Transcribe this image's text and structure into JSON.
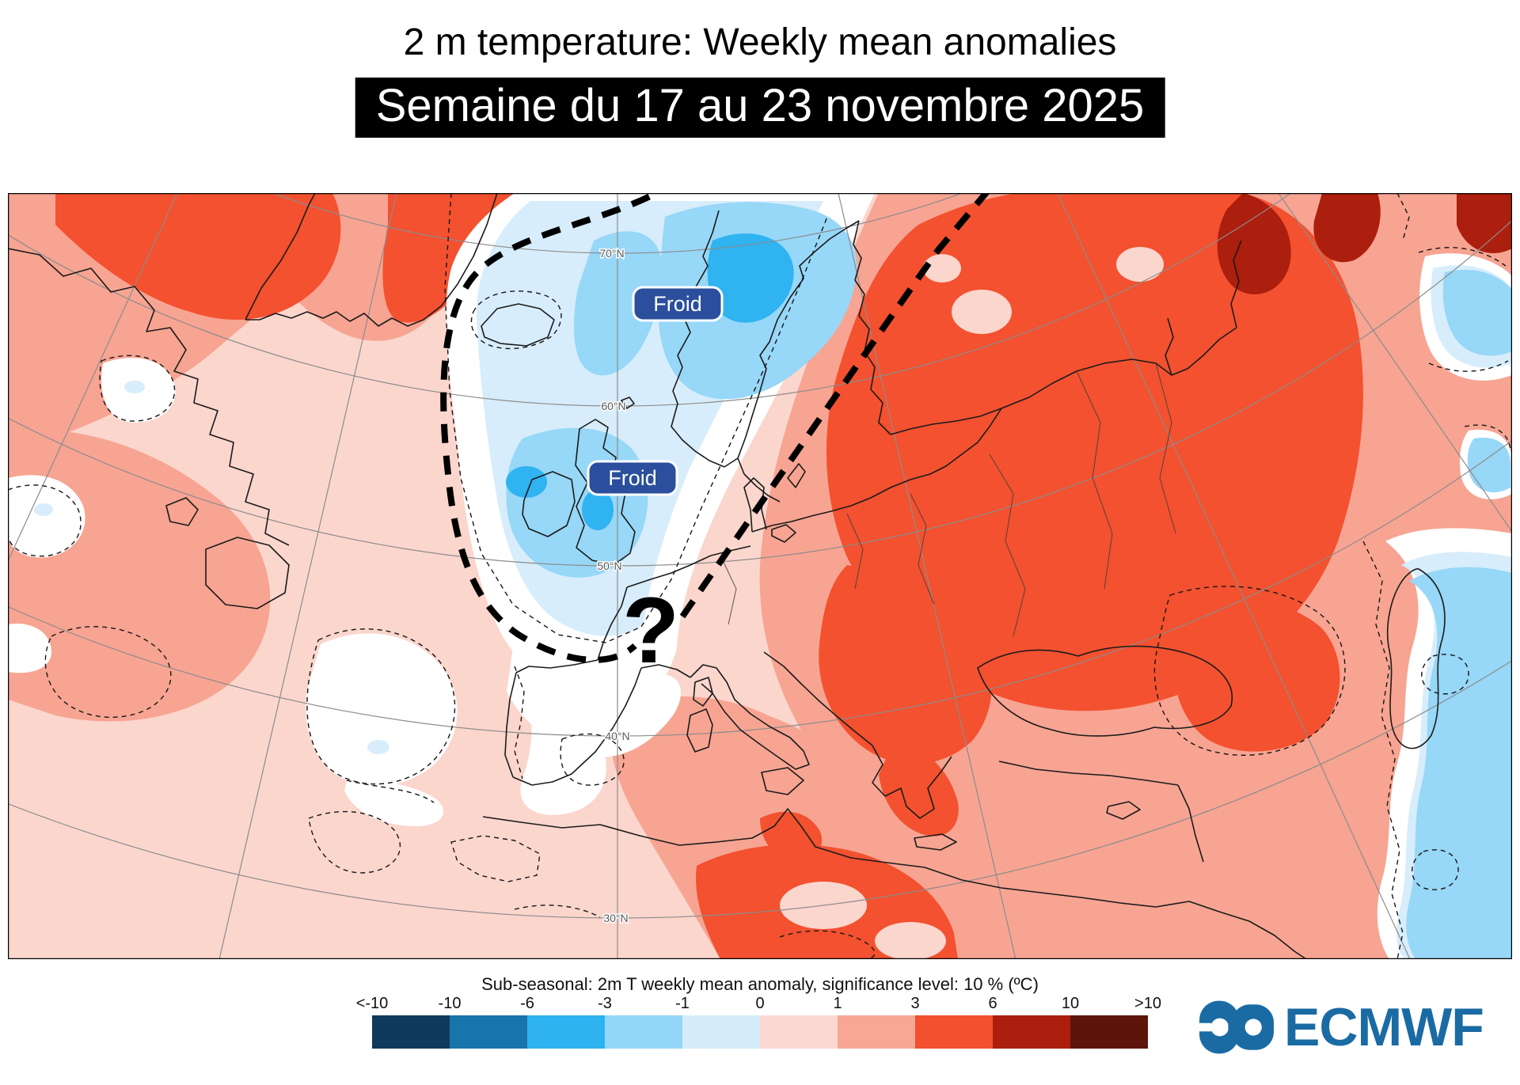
{
  "header": {
    "title": "2 m temperature: Weekly mean anomalies",
    "banner": "Semaine du 17 au 23 novembre 2025"
  },
  "map": {
    "labels": {
      "froid_north": "Froid",
      "froid_west": "Froid",
      "uncertainty_mark": "?"
    },
    "graticule_labels": [
      "70°N",
      "60°N",
      "50°N",
      "40°N",
      "30°N"
    ]
  },
  "legend": {
    "title": "Sub-seasonal: 2m T weekly mean anomaly, significance level: 10 % (ºC)",
    "ticks": [
      "<-10",
      "-10",
      "-6",
      "-3",
      "-1",
      "0",
      "1",
      "3",
      "6",
      "10",
      ">10"
    ],
    "colors": [
      "#0E3A5B",
      "#1974AC",
      "#2FB2F0",
      "#93D6F8",
      "#D6ECFB",
      "#FBD8D2",
      "#F8A795",
      "#F2502F",
      "#AC1E0D",
      "#5C150A"
    ]
  },
  "branding": {
    "name": "ECMWF",
    "color": "#1A6BA3"
  },
  "colors": {
    "cold_label_bg": "#2B4F9D",
    "banner_bg": "#000000"
  }
}
